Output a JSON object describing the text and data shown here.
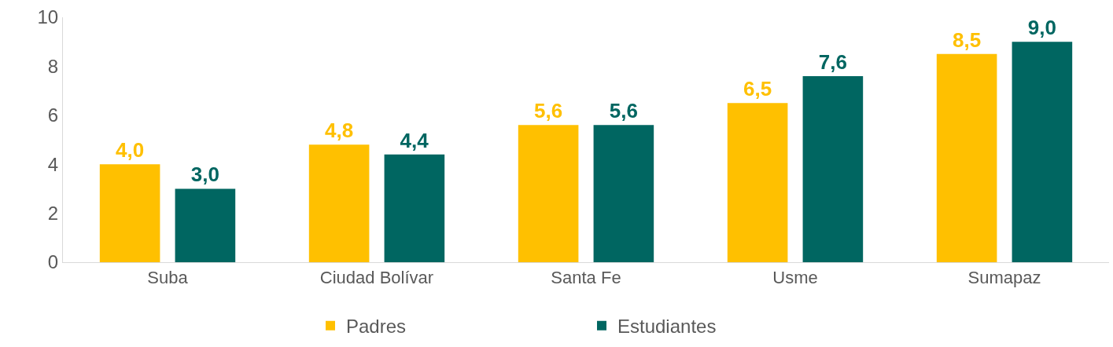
{
  "chart_data": {
    "type": "bar",
    "categories": [
      "Suba",
      "Ciudad Bolívar",
      "Santa Fe",
      "Usme",
      "Sumapaz"
    ],
    "series": [
      {
        "name": "Padres",
        "color": "#ffc000",
        "values": [
          4.0,
          4.8,
          5.6,
          6.5,
          8.5
        ],
        "value_labels": [
          "4,0",
          "4,8",
          "5,6",
          "6,5",
          "8,5"
        ]
      },
      {
        "name": "Estudiantes",
        "color": "#006661",
        "values": [
          3.0,
          4.4,
          5.6,
          7.6,
          9.0
        ],
        "value_labels": [
          "3,0",
          "4,4",
          "5,6",
          "7,6",
          "9,0"
        ]
      }
    ],
    "ylim": [
      0,
      10
    ],
    "yticks": [
      0,
      2,
      4,
      6,
      8,
      10
    ],
    "legend": "bottom"
  }
}
